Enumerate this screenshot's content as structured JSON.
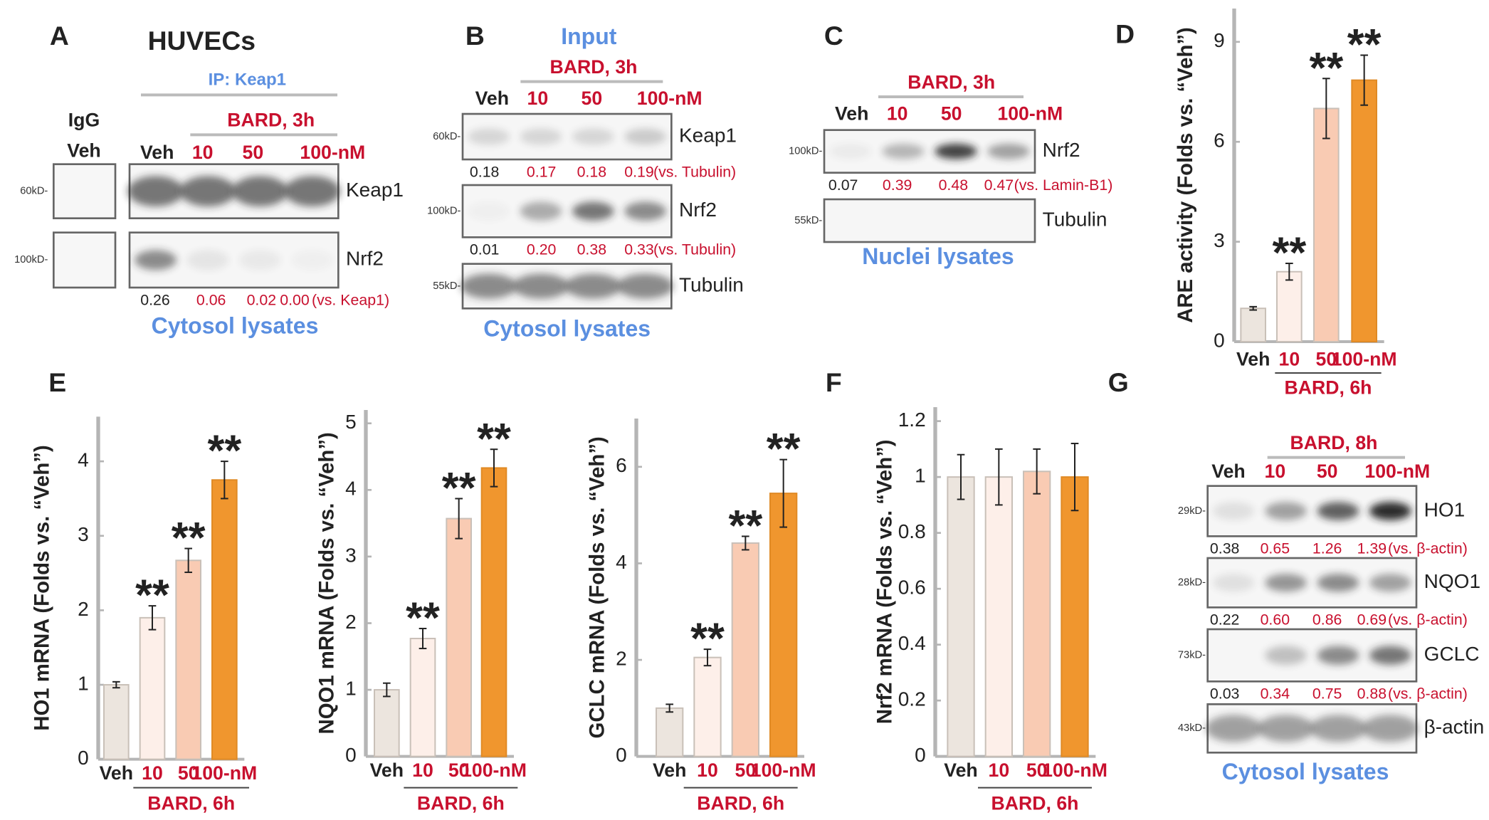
{
  "panel_labels": [
    "A",
    "B",
    "C",
    "D",
    "E",
    "F",
    "G"
  ],
  "blots": [
    {
      "title": "HUVECs",
      "header": "IP: Keap1",
      "control": "IgG",
      "control_lane": "Veh",
      "treatment": "BARD, 3h",
      "lanes": [
        "Veh",
        "10",
        "50",
        "100-nM"
      ],
      "rows": [
        {
          "marker": "60kD-",
          "protein": "Keap1"
        },
        {
          "marker": "100kD-",
          "protein": "Nrf2",
          "quant": [
            "0.26",
            "0.06",
            "0.02",
            "0.00"
          ],
          "note": "(vs. Keap1)"
        }
      ],
      "footer": "Cytosol lysates"
    },
    {
      "header": "Input",
      "treatment": "BARD, 3h",
      "lanes": [
        "Veh",
        "10",
        "50",
        "100-nM"
      ],
      "rows": [
        {
          "marker": "60kD-",
          "protein": "Keap1",
          "quant": [
            "0.18",
            "0.17",
            "0.18",
            "0.19"
          ],
          "note": "(vs. Tubulin)"
        },
        {
          "marker": "100kD-",
          "protein": "Nrf2",
          "quant": [
            "0.01",
            "0.20",
            "0.38",
            "0.33"
          ],
          "note": "(vs. Tubulin)"
        },
        {
          "marker": "55kD-",
          "protein": "Tubulin"
        }
      ],
      "footer": "Cytosol lysates"
    },
    {
      "treatment": "BARD, 3h",
      "lanes": [
        "Veh",
        "10",
        "50",
        "100-nM"
      ],
      "rows": [
        {
          "marker": "100kD-",
          "protein": "Nrf2",
          "quant": [
            "0.07",
            "0.39",
            "0.48",
            "0.47"
          ],
          "note": "(vs. Lamin-B1)"
        },
        {
          "marker": "55kD-",
          "protein": "Tubulin"
        }
      ],
      "footer": "Nuclei lysates"
    },
    {
      "treatment": "BARD, 8h",
      "lanes": [
        "Veh",
        "10",
        "50",
        "100-nM"
      ],
      "rows": [
        {
          "marker": "29kD-",
          "protein": "HO1",
          "quant": [
            "0.38",
            "0.65",
            "1.26",
            "1.39"
          ],
          "note": "(vs. β-actin)"
        },
        {
          "marker": "28kD-",
          "protein": "NQO1",
          "quant": [
            "0.22",
            "0.60",
            "0.86",
            "0.69"
          ],
          "note": "(vs. β-actin)"
        },
        {
          "marker": "73kD-",
          "protein": "GCLC",
          "quant": [
            "0.03",
            "0.34",
            "0.75",
            "0.88"
          ],
          "note": "(vs. β-actin)"
        },
        {
          "marker": "43kD-",
          "protein": "β-actin"
        }
      ],
      "footer": "Cytosol lysates"
    }
  ],
  "chart_data": [
    {
      "type": "bar",
      "ylabel": "ARE activity (Folds vs. “Veh”)",
      "categories": [
        "Veh",
        "10",
        "50",
        "100-nM"
      ],
      "group_label": "BARD, 6h",
      "values": [
        1.0,
        2.1,
        7.0,
        7.85
      ],
      "errors": [
        0.05,
        0.25,
        0.9,
        0.75
      ],
      "colors": [
        "#ece5de",
        "#fdefe9",
        "#f9cbb3",
        "#f0962e"
      ],
      "significance": [
        null,
        "**",
        "**",
        "**"
      ],
      "ylim": [
        0,
        10
      ],
      "yticks": [
        0,
        3,
        6,
        9
      ]
    },
    {
      "type": "bar",
      "ylabel": "HO1 mRNA (Folds vs. “Veh”)",
      "categories": [
        "Veh",
        "10",
        "50",
        "100-nM"
      ],
      "group_label": "BARD, 6h",
      "values": [
        1.0,
        1.9,
        2.67,
        3.75
      ],
      "errors": [
        0.04,
        0.16,
        0.16,
        0.25
      ],
      "colors": [
        "#ece5de",
        "#fdefe9",
        "#f9cbb3",
        "#f0962e"
      ],
      "significance": [
        null,
        "**",
        "**",
        "**"
      ],
      "ylim": [
        0,
        4.6
      ],
      "yticks": [
        0,
        1,
        2,
        3,
        4
      ]
    },
    {
      "type": "bar",
      "ylabel": "NQO1 mRNA (Folds vs. “Veh”)",
      "categories": [
        "Veh",
        "10",
        "50",
        "100-nM"
      ],
      "group_label": "BARD, 6h",
      "values": [
        1.0,
        1.77,
        3.57,
        4.33
      ],
      "errors": [
        0.1,
        0.15,
        0.3,
        0.28
      ],
      "colors": [
        "#ece5de",
        "#fdefe9",
        "#f9cbb3",
        "#f0962e"
      ],
      "significance": [
        null,
        "**",
        "**",
        "**"
      ],
      "ylim": [
        0,
        5.2
      ],
      "yticks": [
        0,
        1,
        2,
        3,
        4,
        5
      ]
    },
    {
      "type": "bar",
      "ylabel": "GCLC mRNA (Folds vs. “Veh”)",
      "categories": [
        "Veh",
        "10",
        "50",
        "100-nM"
      ],
      "group_label": "BARD, 6h",
      "values": [
        1.0,
        2.05,
        4.42,
        5.45
      ],
      "errors": [
        0.08,
        0.17,
        0.14,
        0.7
      ],
      "colors": [
        "#ece5de",
        "#fdefe9",
        "#f9cbb3",
        "#f0962e"
      ],
      "significance": [
        null,
        "**",
        "**",
        "**"
      ],
      "ylim": [
        0,
        7
      ],
      "yticks": [
        0,
        2,
        4,
        6
      ]
    },
    {
      "type": "bar",
      "ylabel": "Nrf2 mRNA (Folds vs. “Veh”)",
      "categories": [
        "Veh",
        "10",
        "50",
        "100-nM"
      ],
      "group_label": "BARD, 6h",
      "values": [
        1.0,
        1.0,
        1.02,
        1.0
      ],
      "errors": [
        0.08,
        0.1,
        0.08,
        0.12
      ],
      "colors": [
        "#ece5de",
        "#fdefe9",
        "#f9cbb3",
        "#f0962e"
      ],
      "ylim": [
        0,
        1.25
      ],
      "yticks": [
        0,
        0.2,
        0.4,
        0.6,
        0.8,
        1,
        1.2
      ]
    }
  ]
}
